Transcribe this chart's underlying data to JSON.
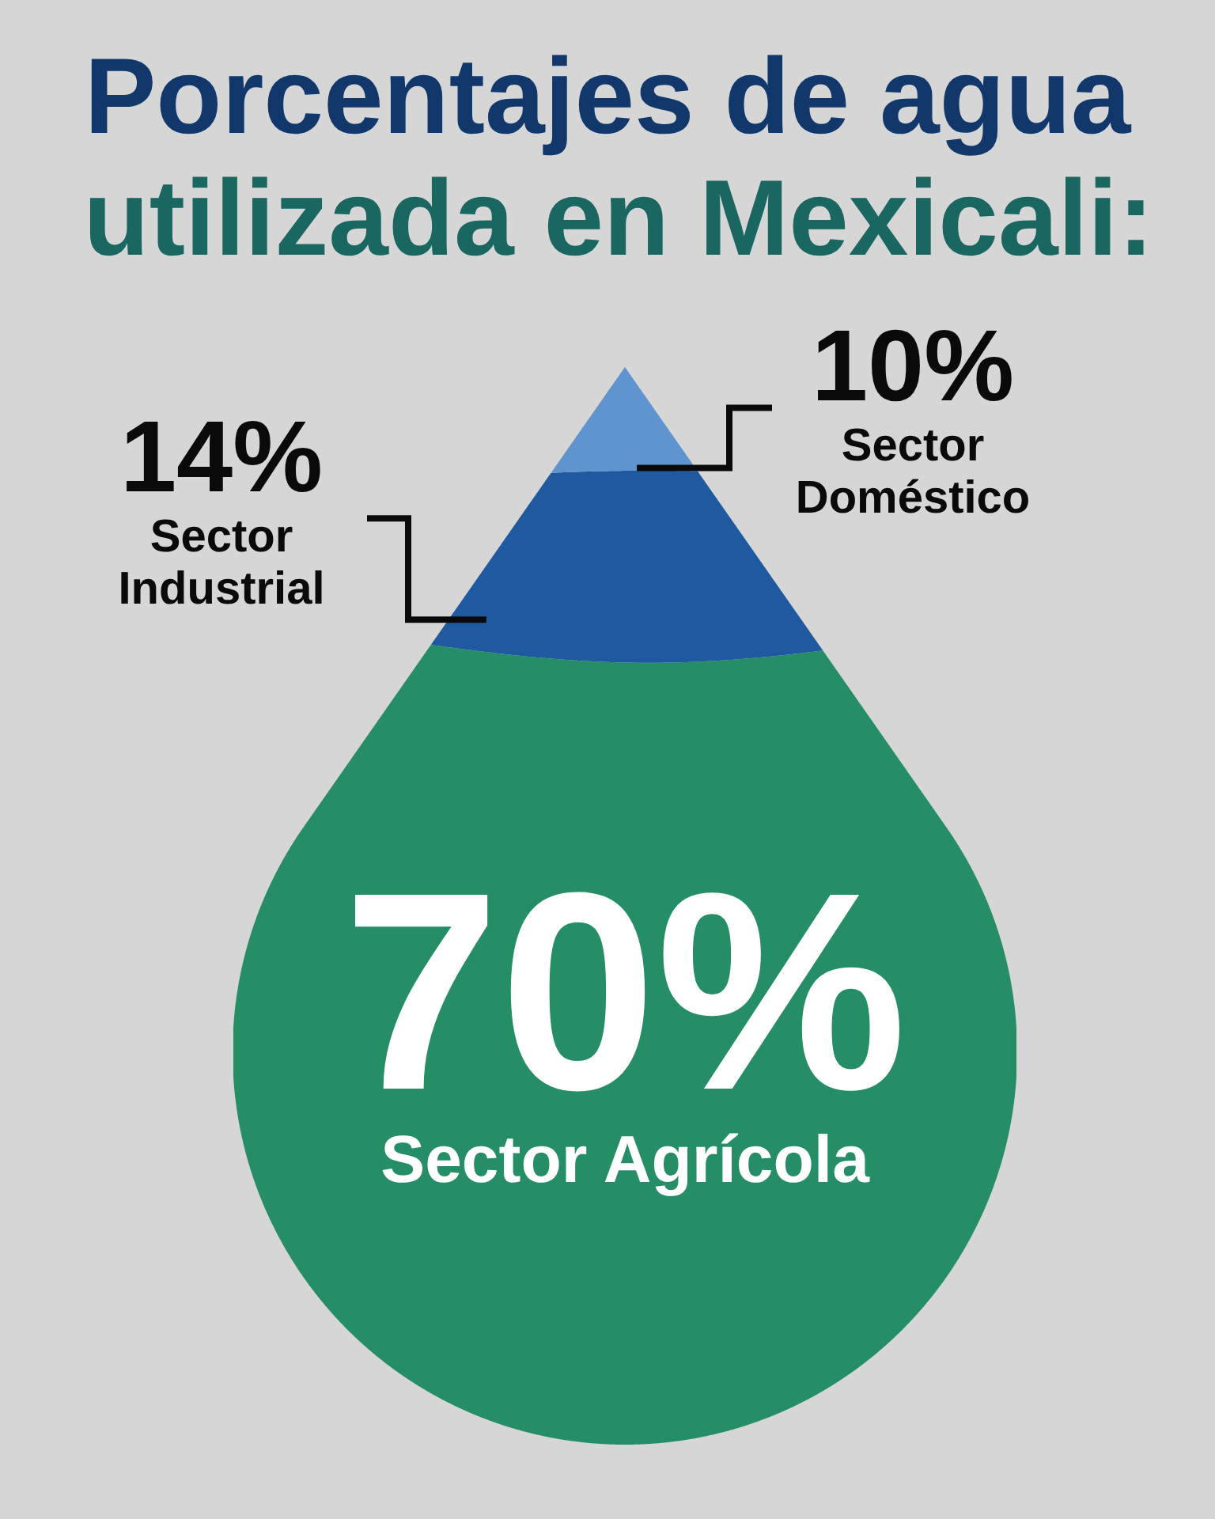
{
  "chart_data": {
    "type": "other",
    "title": "Porcentajes de agua",
    "subtitle": "utilizada en Mexicali:",
    "categories": [
      "Sector Agrícola",
      "Sector Industrial",
      "Sector Doméstico"
    ],
    "values": [
      70,
      14,
      10
    ],
    "value_labels": [
      "70%",
      "14%",
      "10%"
    ],
    "colors": [
      "#258e67",
      "#1f5aa0",
      "#5f94cf"
    ]
  }
}
